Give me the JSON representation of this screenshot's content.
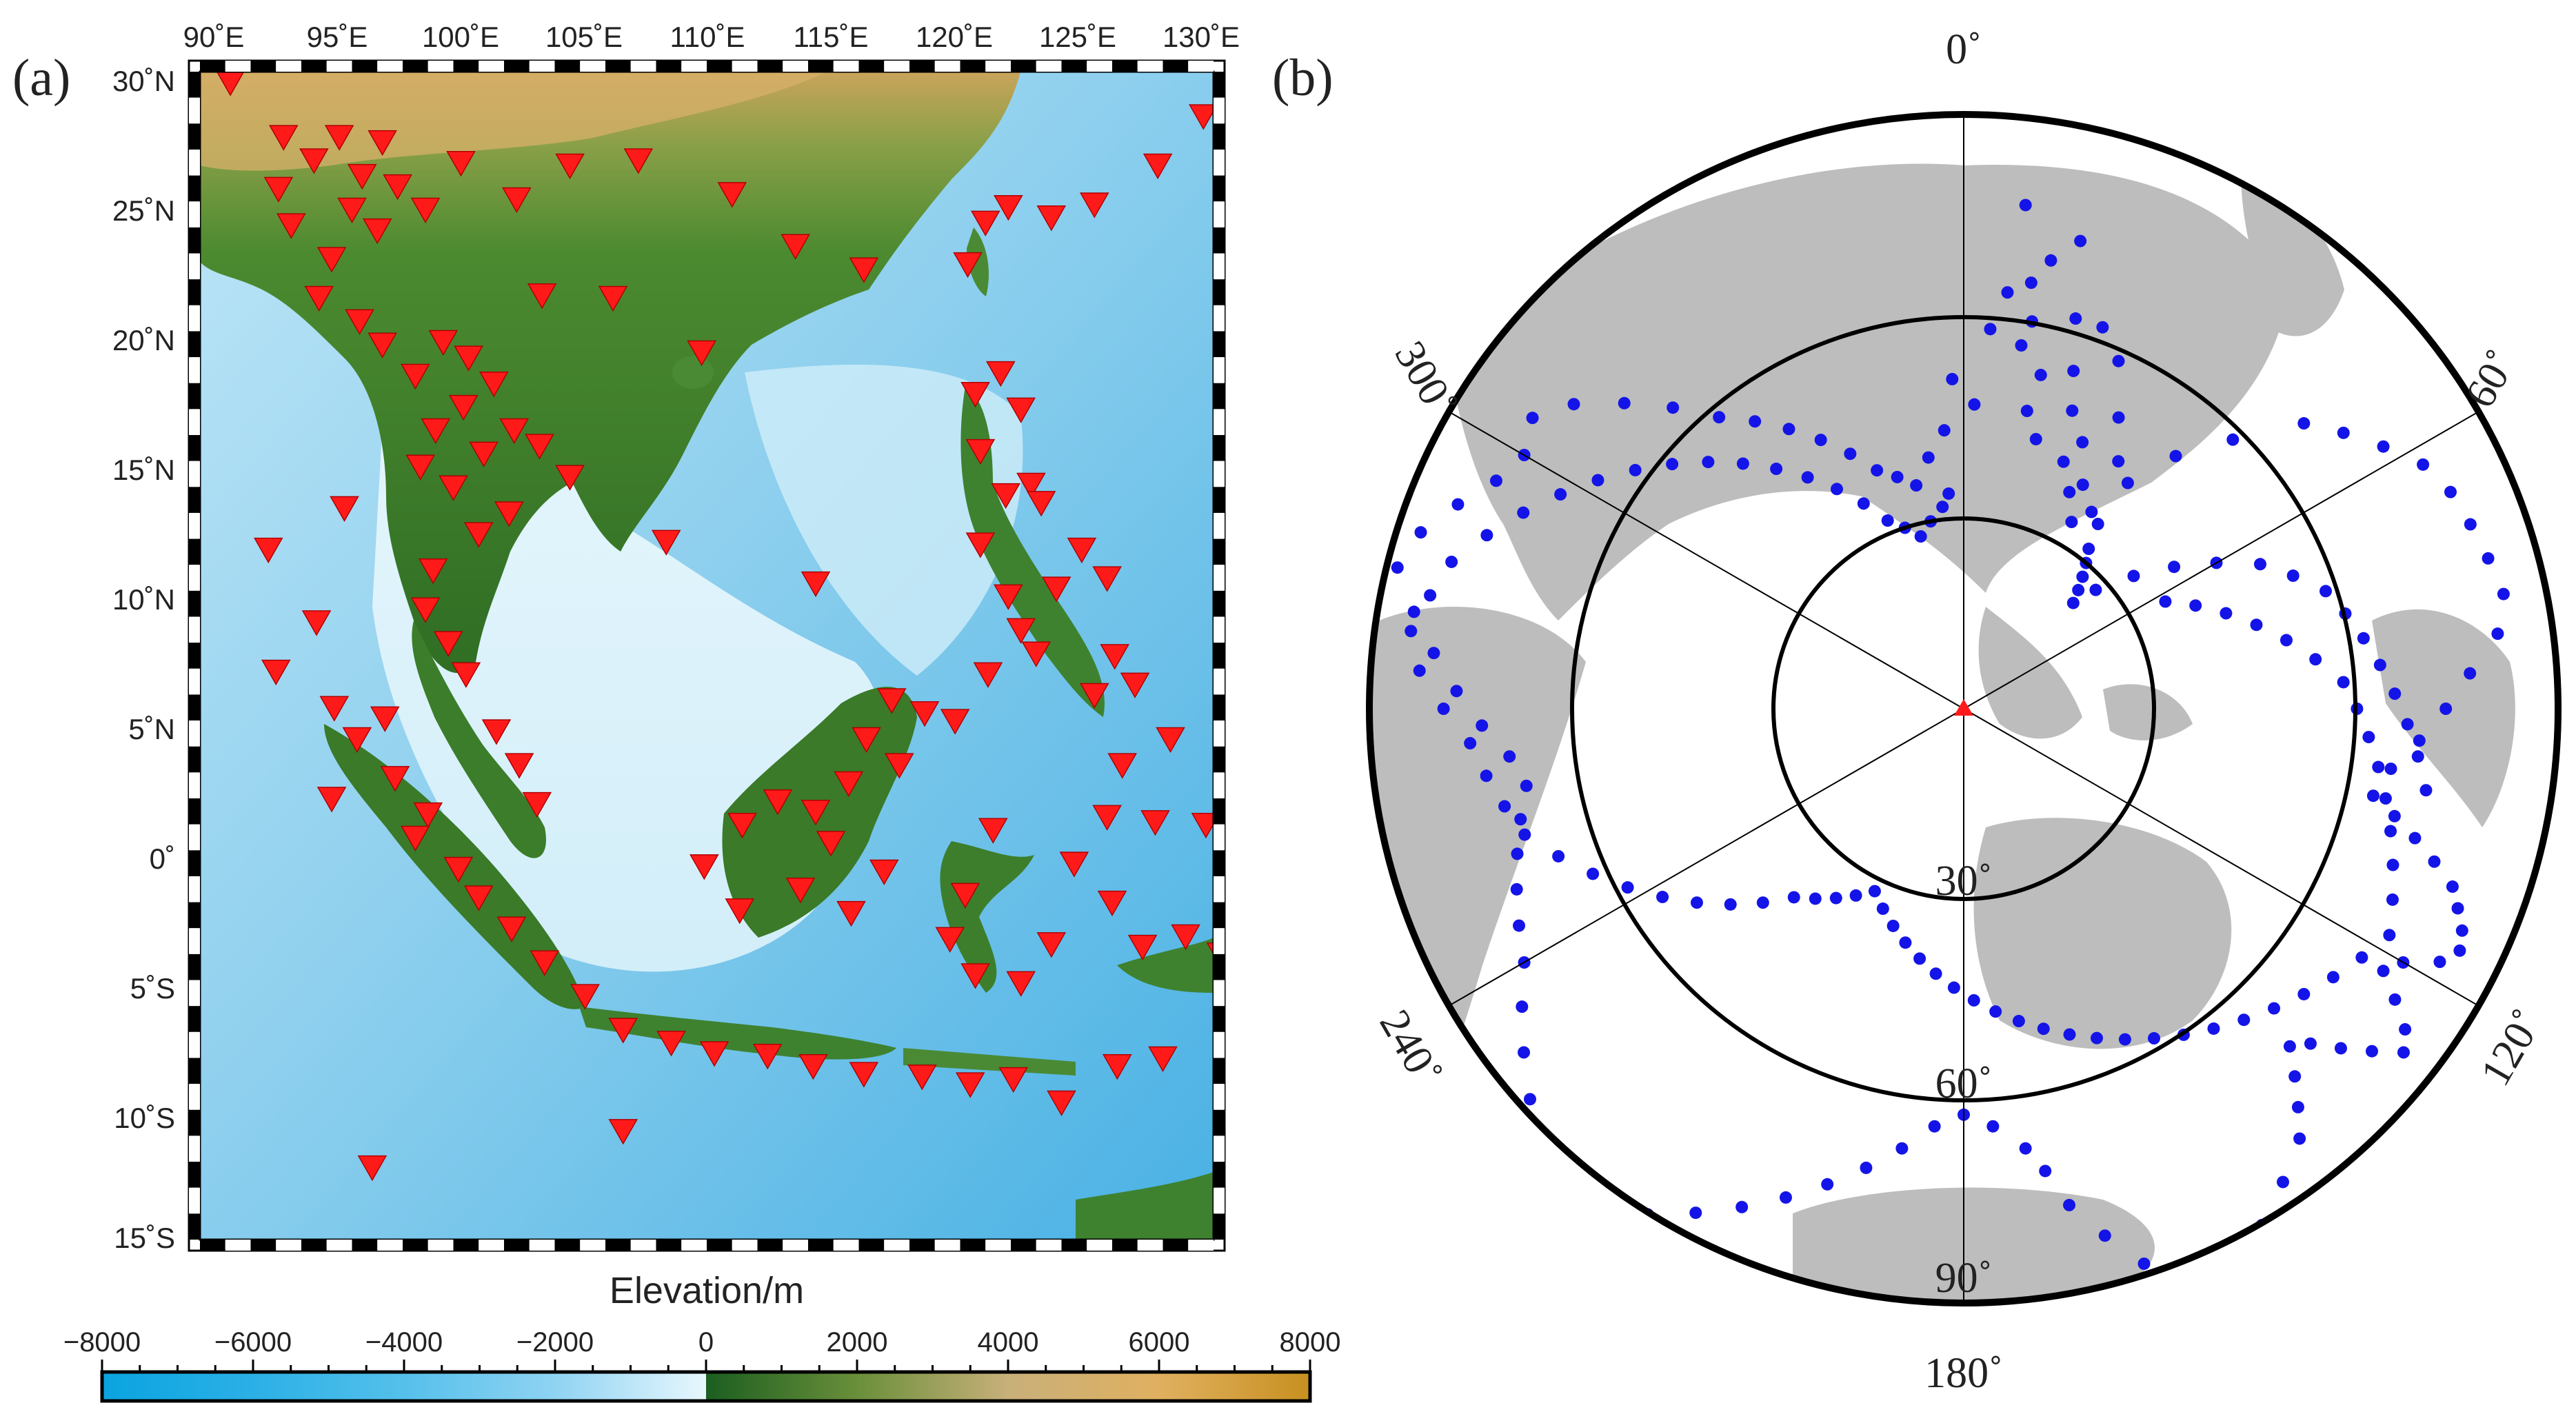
{
  "panel_a": {
    "label": "(a)",
    "lon_labels": [
      "90˚E",
      "95˚E",
      "100˚E",
      "105˚E",
      "110˚E",
      "115˚E",
      "120˚E",
      "125˚E",
      "130˚E"
    ],
    "lat_labels": [
      "30˚N",
      "25˚N",
      "20˚N",
      "15˚N",
      "10˚N",
      "5˚N",
      "0˚",
      "5˚S",
      "10˚S",
      "15˚S"
    ],
    "lon_range": [
      90,
      130
    ],
    "lat_range": [
      -15,
      30
    ],
    "ocean_color": "#8fd0ee",
    "land_color": "#3f7d2a",
    "station_marker": "red-triangle-down",
    "station_color": "#ff1a1a",
    "stations": [
      [
        91.2,
        29.6
      ],
      [
        93.3,
        27.5
      ],
      [
        95.5,
        27.5
      ],
      [
        97.2,
        27.3
      ],
      [
        93.1,
        25.5
      ],
      [
        94.5,
        26.6
      ],
      [
        96.4,
        26.0
      ],
      [
        97.8,
        25.6
      ],
      [
        93.6,
        24.1
      ],
      [
        96.0,
        24.7
      ],
      [
        97.0,
        23.9
      ],
      [
        98.9,
        24.7
      ],
      [
        95.2,
        22.8
      ],
      [
        94.7,
        21.3
      ],
      [
        96.3,
        20.4
      ],
      [
        97.2,
        19.5
      ],
      [
        98.5,
        18.3
      ],
      [
        99.6,
        19.6
      ],
      [
        100.6,
        19.0
      ],
      [
        101.6,
        18.0
      ],
      [
        100.4,
        17.1
      ],
      [
        99.3,
        16.2
      ],
      [
        98.7,
        14.8
      ],
      [
        100.0,
        14.0
      ],
      [
        101.2,
        15.3
      ],
      [
        102.4,
        16.2
      ],
      [
        103.4,
        15.6
      ],
      [
        104.6,
        14.4
      ],
      [
        102.2,
        13.0
      ],
      [
        101.0,
        12.2
      ],
      [
        99.2,
        10.8
      ],
      [
        98.9,
        9.3
      ],
      [
        99.8,
        8.0
      ],
      [
        100.5,
        6.8
      ],
      [
        101.7,
        4.6
      ],
      [
        102.6,
        3.3
      ],
      [
        103.3,
        1.8
      ],
      [
        99.0,
        1.4
      ],
      [
        97.7,
        2.8
      ],
      [
        96.2,
        4.3
      ],
      [
        95.3,
        5.5
      ],
      [
        97.3,
        5.1
      ],
      [
        98.5,
        0.5
      ],
      [
        100.2,
        -0.7
      ],
      [
        101.0,
        -1.8
      ],
      [
        102.3,
        -3.0
      ],
      [
        103.6,
        -4.3
      ],
      [
        105.2,
        -5.6
      ],
      [
        106.7,
        -6.9
      ],
      [
        108.6,
        -7.4
      ],
      [
        110.3,
        -7.8
      ],
      [
        112.4,
        -7.9
      ],
      [
        114.2,
        -8.3
      ],
      [
        116.2,
        -8.6
      ],
      [
        118.5,
        -8.7
      ],
      [
        120.4,
        -9.0
      ],
      [
        122.1,
        -8.8
      ],
      [
        124.0,
        -9.7
      ],
      [
        126.2,
        -8.3
      ],
      [
        127.2,
        -3.7
      ],
      [
        126.0,
        -2.0
      ],
      [
        124.5,
        -0.5
      ],
      [
        125.8,
        1.3
      ],
      [
        127.7,
        1.1
      ],
      [
        128.9,
        -3.3
      ],
      [
        130.3,
        -4.0
      ],
      [
        121.3,
        0.8
      ],
      [
        120.2,
        -1.7
      ],
      [
        119.6,
        -3.4
      ],
      [
        120.6,
        -4.8
      ],
      [
        122.4,
        -5.1
      ],
      [
        123.6,
        -3.6
      ],
      [
        109.9,
        -0.6
      ],
      [
        111.4,
        1.0
      ],
      [
        112.8,
        1.9
      ],
      [
        114.3,
        1.5
      ],
      [
        115.6,
        2.6
      ],
      [
        116.3,
        4.3
      ],
      [
        117.3,
        5.8
      ],
      [
        118.6,
        5.3
      ],
      [
        114.9,
        0.3
      ],
      [
        113.7,
        -1.5
      ],
      [
        115.7,
        -2.4
      ],
      [
        111.3,
        -2.3
      ],
      [
        117.0,
        -0.8
      ],
      [
        117.6,
        3.3
      ],
      [
        119.8,
        5.0
      ],
      [
        121.1,
        6.8
      ],
      [
        122.4,
        8.5
      ],
      [
        123.8,
        10.1
      ],
      [
        124.8,
        11.6
      ],
      [
        125.8,
        10.5
      ],
      [
        126.1,
        7.5
      ],
      [
        125.3,
        6.0
      ],
      [
        123.0,
        7.6
      ],
      [
        121.9,
        9.8
      ],
      [
        120.8,
        11.8
      ],
      [
        121.8,
        13.7
      ],
      [
        122.8,
        14.1
      ],
      [
        120.8,
        15.4
      ],
      [
        120.6,
        17.6
      ],
      [
        121.6,
        18.4
      ],
      [
        122.4,
        17.0
      ],
      [
        123.2,
        13.4
      ],
      [
        120.3,
        22.6
      ],
      [
        121.0,
        24.2
      ],
      [
        121.9,
        24.8
      ],
      [
        123.6,
        24.4
      ],
      [
        125.3,
        24.9
      ],
      [
        127.8,
        26.4
      ],
      [
        129.6,
        28.3
      ],
      [
        116.2,
        22.4
      ],
      [
        113.5,
        23.3
      ],
      [
        111.0,
        25.3
      ],
      [
        107.3,
        26.6
      ],
      [
        104.6,
        26.4
      ],
      [
        102.5,
        25.1
      ],
      [
        100.3,
        26.5
      ],
      [
        103.5,
        21.4
      ],
      [
        106.3,
        21.3
      ],
      [
        109.8,
        19.2
      ],
      [
        108.4,
        11.9
      ],
      [
        114.3,
        10.3
      ],
      [
        95.7,
        13.2
      ],
      [
        92.7,
        11.6
      ],
      [
        94.6,
        8.8
      ],
      [
        93.0,
        6.9
      ],
      [
        95.2,
        2.0
      ],
      [
        106.7,
        -10.8
      ],
      [
        96.8,
        -12.2
      ],
      [
        129.7,
        1.0
      ],
      [
        128.0,
        -8.0
      ],
      [
        128.3,
        4.3
      ],
      [
        126.9,
        6.4
      ],
      [
        126.4,
        3.3
      ]
    ]
  },
  "colorbar": {
    "title": "Elevation/m",
    "tick_labels": [
      "−8000",
      "−6000",
      "−4000",
      "−2000",
      "0",
      "2000",
      "4000",
      "6000",
      "8000"
    ],
    "range": [
      -8000,
      8000
    ]
  },
  "panel_b": {
    "label": "(b)",
    "azimuth_labels": [
      "0˚",
      "60˚",
      "120˚",
      "180˚",
      "240˚",
      "300˚"
    ],
    "distance_labels": [
      "30˚",
      "60˚",
      "90˚"
    ],
    "center_marker": "red-triangle",
    "land_color": "#bdbdbd",
    "event_color": "#1414e8",
    "events": [
      [
        7,
        80
      ],
      [
        9,
        68
      ],
      [
        9,
        58
      ],
      [
        10,
        62
      ],
      [
        11,
        72
      ],
      [
        12,
        48
      ],
      [
        13,
        54
      ],
      [
        14,
        76
      ],
      [
        15,
        44
      ],
      [
        16,
        64
      ],
      [
        18,
        56
      ],
      [
        20,
        50
      ],
      [
        22,
        42
      ],
      [
        24,
        46
      ],
      [
        26,
        38
      ],
      [
        28,
        40
      ],
      [
        30,
        34
      ],
      [
        33,
        37
      ],
      [
        36,
        44
      ],
      [
        40,
        52
      ],
      [
        45,
        60
      ],
      [
        50,
        70
      ],
      [
        54,
        74
      ],
      [
        58,
        78
      ],
      [
        62,
        82
      ],
      [
        66,
        84
      ],
      [
        70,
        85
      ],
      [
        74,
        86
      ],
      [
        78,
        87
      ],
      [
        82,
        85
      ],
      [
        86,
        80
      ],
      [
        90,
        76
      ],
      [
        94,
        72
      ],
      [
        98,
        68
      ],
      [
        102,
        66
      ],
      [
        104,
        70
      ],
      [
        106,
        74
      ],
      [
        108,
        78
      ],
      [
        110,
        82
      ],
      [
        112,
        84
      ],
      [
        114,
        86
      ],
      [
        116,
        87
      ],
      [
        118,
        85
      ],
      [
        120,
        80
      ],
      [
        122,
        78
      ],
      [
        124,
        82
      ],
      [
        126,
        86
      ],
      [
        128,
        88
      ],
      [
        130,
        84
      ],
      [
        132,
        80
      ],
      [
        134,
        76
      ],
      [
        136,
        74
      ],
      [
        138,
        78
      ],
      [
        140,
        82
      ],
      [
        142,
        86
      ],
      [
        146,
        90
      ],
      [
        150,
        94
      ],
      [
        154,
        97
      ],
      [
        158,
        99
      ],
      [
        162,
        92
      ],
      [
        165,
        86
      ],
      [
        168,
        80
      ],
      [
        170,
        74
      ],
      [
        172,
        70
      ],
      [
        176,
        66
      ],
      [
        180,
        64
      ],
      [
        184,
        66
      ],
      [
        188,
        70
      ],
      [
        192,
        74
      ],
      [
        196,
        78
      ],
      [
        200,
        82
      ],
      [
        204,
        86
      ],
      [
        208,
        90
      ],
      [
        212,
        94
      ],
      [
        216,
        98
      ],
      [
        220,
        100
      ],
      [
        224,
        96
      ],
      [
        228,
        92
      ],
      [
        232,
        88
      ],
      [
        236,
        84
      ],
      [
        240,
        80
      ],
      [
        244,
        78
      ],
      [
        248,
        76
      ],
      [
        252,
        74
      ],
      [
        256,
        72
      ],
      [
        260,
        70
      ],
      [
        264,
        72
      ],
      [
        268,
        76
      ],
      [
        272,
        80
      ],
      [
        276,
        84
      ],
      [
        280,
        88
      ],
      [
        284,
        92
      ],
      [
        288,
        90
      ],
      [
        292,
        86
      ],
      [
        296,
        82
      ],
      [
        300,
        80
      ],
      [
        304,
        82
      ],
      [
        308,
        78
      ],
      [
        312,
        72
      ],
      [
        316,
        66
      ],
      [
        320,
        60
      ],
      [
        324,
        56
      ],
      [
        328,
        52
      ],
      [
        332,
        48
      ],
      [
        336,
        44
      ],
      [
        340,
        40
      ],
      [
        344,
        38
      ],
      [
        348,
        36
      ],
      [
        352,
        40
      ],
      [
        356,
        44
      ],
      [
        358,
        52
      ],
      [
        2,
        48
      ],
      [
        4,
        60
      ],
      [
        6,
        66
      ],
      [
        20,
        64
      ],
      [
        24,
        60
      ],
      [
        28,
        52
      ],
      [
        32,
        46
      ],
      [
        36,
        36
      ],
      [
        38,
        32
      ],
      [
        40,
        30
      ],
      [
        42,
        28
      ],
      [
        44,
        26
      ],
      [
        46,
        24
      ],
      [
        48,
        28
      ],
      [
        52,
        34
      ],
      [
        56,
        40
      ],
      [
        60,
        46
      ],
      [
        64,
        52
      ],
      [
        68,
        56
      ],
      [
        72,
        60
      ],
      [
        76,
        62
      ],
      [
        80,
        64
      ],
      [
        84,
        66
      ],
      [
        88,
        68
      ],
      [
        92,
        70
      ],
      [
        96,
        72
      ],
      [
        100,
        74
      ],
      [
        62,
        36
      ],
      [
        66,
        40
      ],
      [
        70,
        44
      ],
      [
        74,
        48
      ],
      [
        78,
        52
      ],
      [
        82,
        56
      ],
      [
        86,
        60
      ],
      [
        90,
        62
      ],
      [
        94,
        64
      ],
      [
        98,
        66
      ],
      [
        102,
        68
      ],
      [
        106,
        70
      ],
      [
        110,
        72
      ],
      [
        114,
        74
      ],
      [
        118,
        76
      ],
      [
        122,
        74
      ],
      [
        126,
        72
      ],
      [
        130,
        70
      ],
      [
        134,
        68
      ],
      [
        138,
        66
      ],
      [
        142,
        64
      ],
      [
        146,
        62
      ],
      [
        150,
        60
      ],
      [
        154,
        58
      ],
      [
        158,
        56
      ],
      [
        162,
        54
      ],
      [
        166,
        52
      ],
      [
        170,
        50
      ],
      [
        174,
        48
      ],
      [
        178,
        46
      ],
      [
        182,
        44
      ],
      [
        186,
        42
      ],
      [
        190,
        40
      ],
      [
        194,
        38
      ],
      [
        198,
        36
      ],
      [
        202,
        34
      ],
      [
        206,
        32
      ],
      [
        210,
        34
      ],
      [
        214,
        36
      ],
      [
        218,
        38
      ],
      [
        222,
        40
      ],
      [
        226,
        44
      ],
      [
        230,
        48
      ],
      [
        234,
        52
      ],
      [
        238,
        56
      ],
      [
        242,
        60
      ],
      [
        246,
        64
      ],
      [
        250,
        68
      ],
      [
        254,
        72
      ],
      [
        258,
        74
      ],
      [
        262,
        76
      ],
      [
        266,
        78
      ],
      [
        270,
        82
      ],
      [
        274,
        86
      ],
      [
        278,
        88
      ],
      [
        282,
        86
      ],
      [
        286,
        84
      ],
      [
        290,
        80
      ],
      [
        294,
        76
      ],
      [
        298,
        72
      ],
      [
        302,
        68
      ],
      [
        306,
        64
      ],
      [
        310,
        60
      ],
      [
        314,
        56
      ],
      [
        318,
        52
      ],
      [
        322,
        48
      ],
      [
        326,
        44
      ],
      [
        330,
        40
      ],
      [
        334,
        36
      ],
      [
        338,
        32
      ],
      [
        342,
        30
      ],
      [
        346,
        28
      ],
      [
        350,
        30
      ],
      [
        354,
        32
      ],
      [
        356,
        34
      ]
    ]
  }
}
